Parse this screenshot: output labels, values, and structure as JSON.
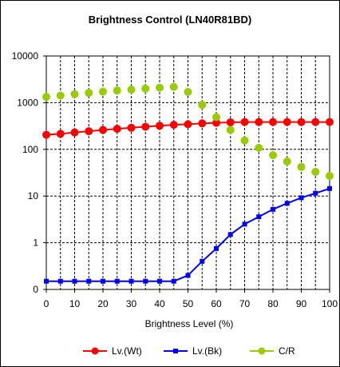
{
  "chart_data": {
    "type": "line",
    "title": "Brightness Control (LN40R81BD)",
    "xlabel": "Brightness Level (%)",
    "ylabel": "",
    "yscale": "log",
    "xlim": [
      0,
      100
    ],
    "ylim": [
      0.1,
      10000
    ],
    "x_ticks": [
      0,
      10,
      20,
      30,
      40,
      50,
      60,
      70,
      80,
      90,
      100
    ],
    "y_ticks": [
      0.1,
      1,
      10,
      100,
      1000,
      10000
    ],
    "y_tick_labels": [
      "0",
      "1",
      "10",
      "100",
      "1000",
      "10000"
    ],
    "grid": true,
    "legend_position": "bottom",
    "x": [
      0,
      5,
      10,
      15,
      20,
      25,
      30,
      35,
      40,
      45,
      50,
      55,
      60,
      65,
      70,
      75,
      80,
      85,
      90,
      95,
      100
    ],
    "series": [
      {
        "name": "Lv.(Wt)",
        "color": "#ff0000",
        "marker": "circle",
        "line": true,
        "values": [
          205,
          215,
          230,
          245,
          260,
          275,
          290,
          305,
          320,
          335,
          345,
          360,
          370,
          380,
          385,
          385,
          385,
          385,
          385,
          385,
          385
        ]
      },
      {
        "name": "Lv.(Bk)",
        "color": "#0000ff",
        "marker": "square",
        "line": true,
        "values": [
          0.15,
          0.15,
          0.15,
          0.15,
          0.15,
          0.15,
          0.15,
          0.15,
          0.15,
          0.15,
          0.2,
          0.4,
          0.75,
          1.5,
          2.5,
          3.6,
          5.2,
          7.0,
          9.2,
          11.5,
          14.5
        ]
      },
      {
        "name": "C/R",
        "color": "#99cc00",
        "marker": "circle",
        "line": false,
        "values": [
          1330,
          1420,
          1520,
          1620,
          1720,
          1820,
          1900,
          2000,
          2100,
          2180,
          1700,
          900,
          490,
          260,
          155,
          108,
          75,
          55,
          42,
          33,
          27
        ]
      }
    ]
  }
}
